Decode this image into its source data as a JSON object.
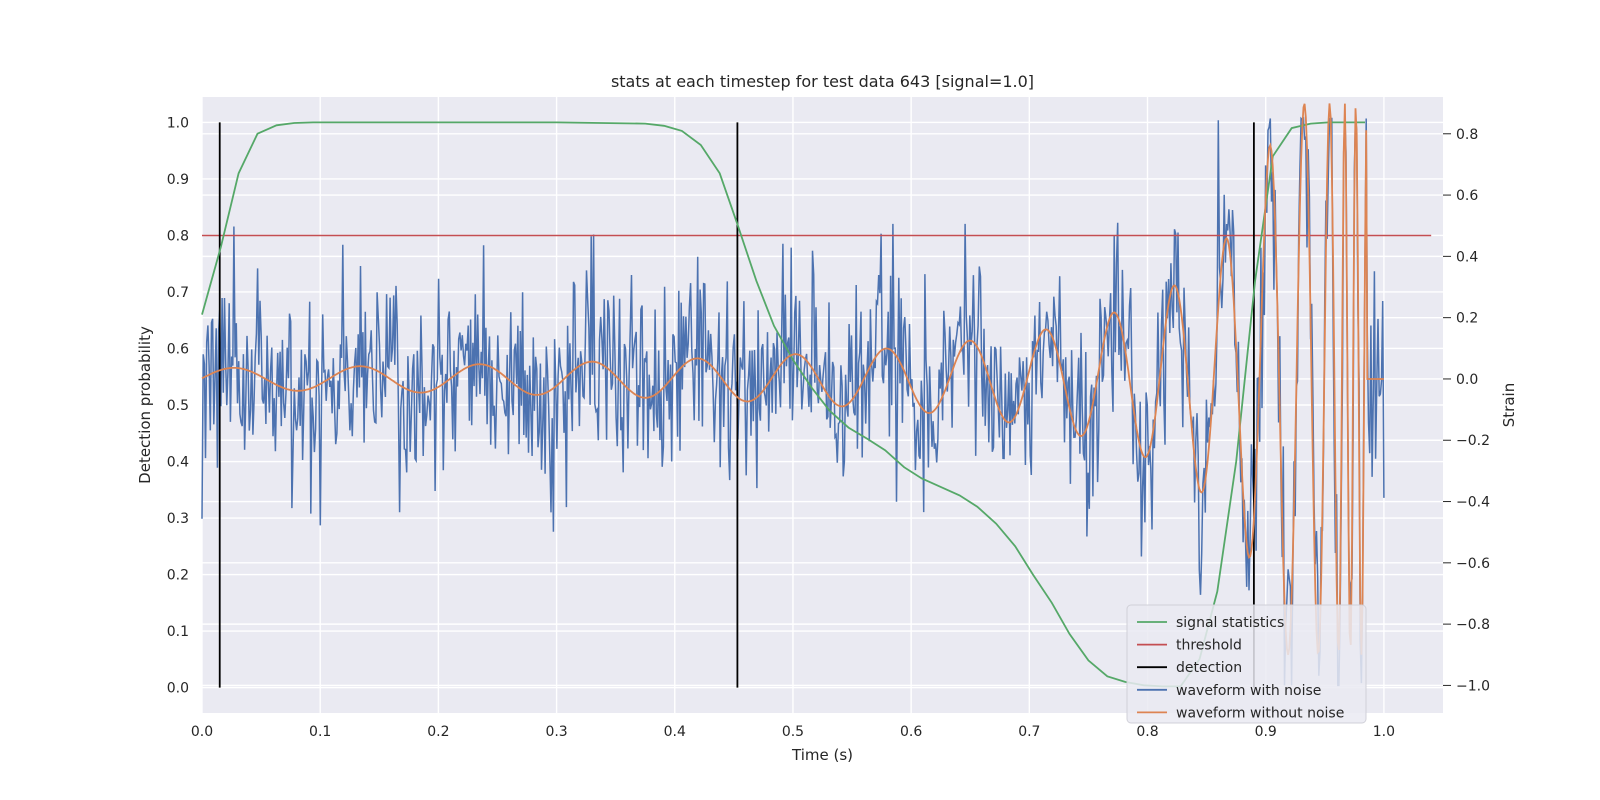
{
  "chart_data": {
    "type": "line",
    "title": "stats at each timestep for test data 643 [signal=1.0]",
    "xlabel": "Time (s)",
    "ylabel": "Detection probability",
    "y2label": "Strain",
    "xlim": [
      0.0,
      1.05
    ],
    "ylim": [
      -0.045,
      1.045
    ],
    "y2lim": [
      -1.09,
      0.92
    ],
    "x_ticks": [
      0.0,
      0.1,
      0.2,
      0.3,
      0.4,
      0.5,
      0.6,
      0.7,
      0.8,
      0.9,
      1.0
    ],
    "x_tick_labels": [
      "0.0",
      "0.1",
      "0.2",
      "0.3",
      "0.4",
      "0.5",
      "0.6",
      "0.7",
      "0.8",
      "0.9",
      "1.0"
    ],
    "y_ticks": [
      0.0,
      0.1,
      0.2,
      0.3,
      0.4,
      0.5,
      0.6,
      0.7,
      0.8,
      0.9,
      1.0
    ],
    "y_tick_labels": [
      "0.0",
      "0.1",
      "0.2",
      "0.3",
      "0.4",
      "0.5",
      "0.6",
      "0.7",
      "0.8",
      "0.9",
      "1.0"
    ],
    "y2_ticks": [
      -1.0,
      -0.8,
      -0.6,
      -0.4,
      -0.2,
      0.0,
      0.2,
      0.4,
      0.6,
      0.8
    ],
    "y2_tick_labels": [
      "−1.0",
      "−0.8",
      "−0.6",
      "−0.4",
      "−0.2",
      "0.0",
      "0.2",
      "0.4",
      "0.6",
      "0.8"
    ],
    "grid": true,
    "legend_position": "lower-right",
    "colors": {
      "background": "#eaeaf2",
      "grid": "#ffffff",
      "signal_statistics": "#55a868",
      "threshold": "#c44e52",
      "detection": "#000000",
      "waveform_with_noise": "#4c72b0",
      "waveform_without_noise": "#dd8452"
    },
    "series": [
      {
        "name": "signal statistics",
        "axis": "left",
        "x": [
          0.0,
          0.016,
          0.031,
          0.047,
          0.063,
          0.078,
          0.094,
          0.2,
          0.3,
          0.375,
          0.391,
          0.406,
          0.422,
          0.438,
          0.453,
          0.469,
          0.484,
          0.5,
          0.516,
          0.531,
          0.547,
          0.563,
          0.578,
          0.594,
          0.609,
          0.625,
          0.641,
          0.656,
          0.672,
          0.688,
          0.703,
          0.719,
          0.734,
          0.75,
          0.766,
          0.781,
          0.797,
          0.813,
          0.828,
          0.844,
          0.859,
          0.875,
          0.891,
          0.906,
          0.922,
          0.938,
          0.953,
          0.969,
          0.984
        ],
        "y": [
          0.66,
          0.78,
          0.91,
          0.98,
          0.995,
          0.999,
          1.0,
          1.0,
          1.0,
          0.998,
          0.994,
          0.985,
          0.96,
          0.91,
          0.82,
          0.72,
          0.64,
          0.58,
          0.53,
          0.49,
          0.46,
          0.44,
          0.42,
          0.39,
          0.37,
          0.355,
          0.34,
          0.32,
          0.29,
          0.25,
          0.2,
          0.15,
          0.095,
          0.048,
          0.02,
          0.01,
          0.004,
          0.002,
          0.002,
          0.05,
          0.17,
          0.4,
          0.72,
          0.94,
          0.99,
          0.998,
          1.0,
          1.0,
          1.0
        ]
      },
      {
        "name": "threshold",
        "axis": "left",
        "x": [
          0.0,
          1.04
        ],
        "y": [
          0.8,
          0.8
        ]
      },
      {
        "name": "detection",
        "axis": "left",
        "x": [
          0.015,
          0.453,
          0.89
        ],
        "y_from": 0.0,
        "y_to": 1.0
      },
      {
        "name": "waveform with noise",
        "axis": "right",
        "x_range": [
          0.0,
          1.0
        ],
        "noise_std": 0.16,
        "seed": 643
      },
      {
        "name": "waveform without noise",
        "axis": "right",
        "x_range": [
          0.0,
          1.0
        ],
        "chirp": {
          "f0": 9.0,
          "amp0": 0.035,
          "t_coalesce": 0.97
        }
      }
    ]
  }
}
